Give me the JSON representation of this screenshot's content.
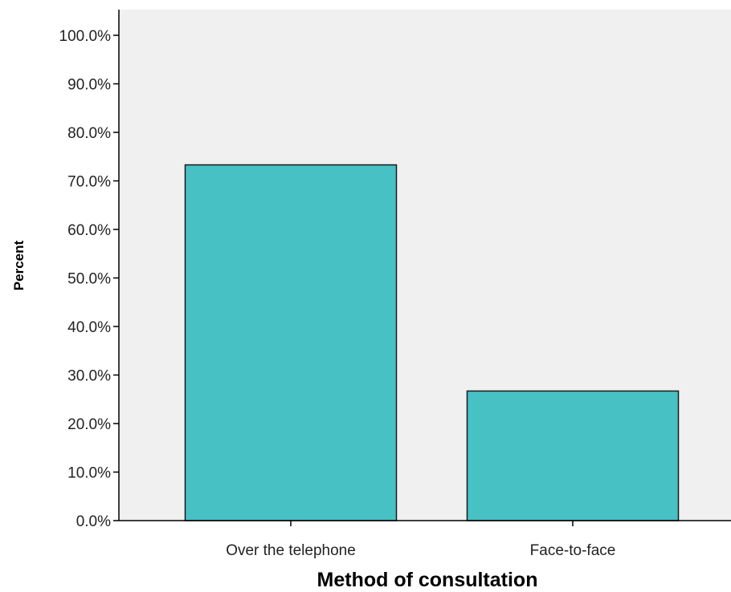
{
  "chart_data": {
    "type": "bar",
    "categories": [
      "Over the telephone",
      "Face-to-face"
    ],
    "values": [
      73.3,
      26.7
    ],
    "xlabel": "Method of consultation",
    "ylabel": "Percent",
    "ylim": [
      0,
      100
    ],
    "y_ticks": [
      "0.0%",
      "10.0%",
      "20.0%",
      "30.0%",
      "40.0%",
      "50.0%",
      "60.0%",
      "70.0%",
      "80.0%",
      "90.0%",
      "100.0%"
    ],
    "grid": false,
    "legend": "none",
    "colors": {
      "bar_fill": "#48c1c5",
      "bar_stroke": "#1a1a1a",
      "plot_background": "#f0f0f0",
      "axis": "#000000"
    }
  }
}
